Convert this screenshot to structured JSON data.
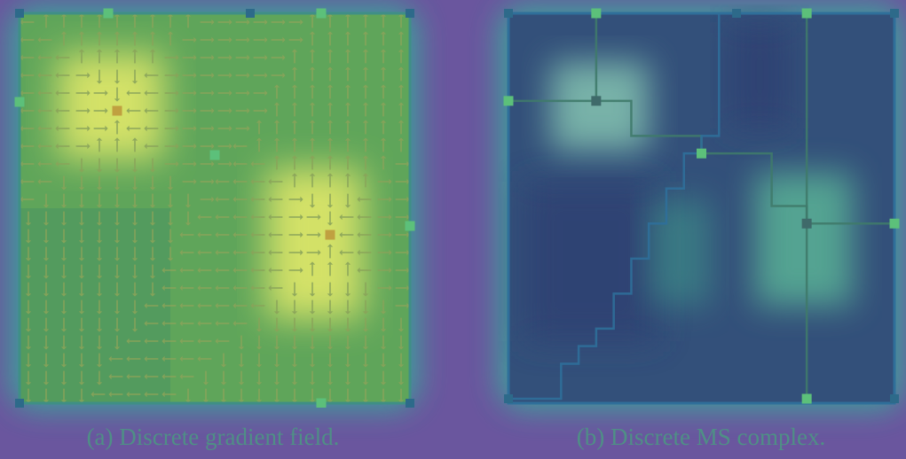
{
  "figure": {
    "captions": {
      "a": "(a)  Discrete gradient field.",
      "b": "(b)  Discrete MS complex."
    },
    "colors": {
      "background": "#6a569e",
      "glow": "#3aa69a",
      "field_fill": "#5fa55a",
      "peak_fill": "#e8ec6a",
      "arrow": "#8aa35a",
      "complex_fill": "#33507a",
      "ascending_line": "#3f7a6a",
      "descending_line": "#2f6f9a",
      "max_node": "#4bb06a",
      "saddle_node": "#5cc07a",
      "min_node": "#2d6a8a",
      "caption_text": "#4f8f86"
    },
    "grid": {
      "cols": 22,
      "rows": 22
    },
    "gradient_field": {
      "maxima": [
        {
          "col": 5,
          "row": 5
        },
        {
          "col": 17,
          "row": 12
        }
      ]
    },
    "ms_complex": {
      "maxima": [
        {
          "col": 5,
          "row": 5
        },
        {
          "col": 17,
          "row": 12
        }
      ],
      "saddles": [
        {
          "col": 5,
          "row": 0
        },
        {
          "col": 17,
          "row": 0
        },
        {
          "col": 0,
          "row": 5
        },
        {
          "col": 11,
          "row": 8
        },
        {
          "col": 22,
          "row": 12
        },
        {
          "col": 17,
          "row": 22
        }
      ],
      "minima": [
        {
          "col": 0,
          "row": 0
        },
        {
          "col": 13,
          "row": 0
        },
        {
          "col": 22,
          "row": 0
        },
        {
          "col": 0,
          "row": 22
        },
        {
          "col": 22,
          "row": 22
        }
      ]
    }
  }
}
